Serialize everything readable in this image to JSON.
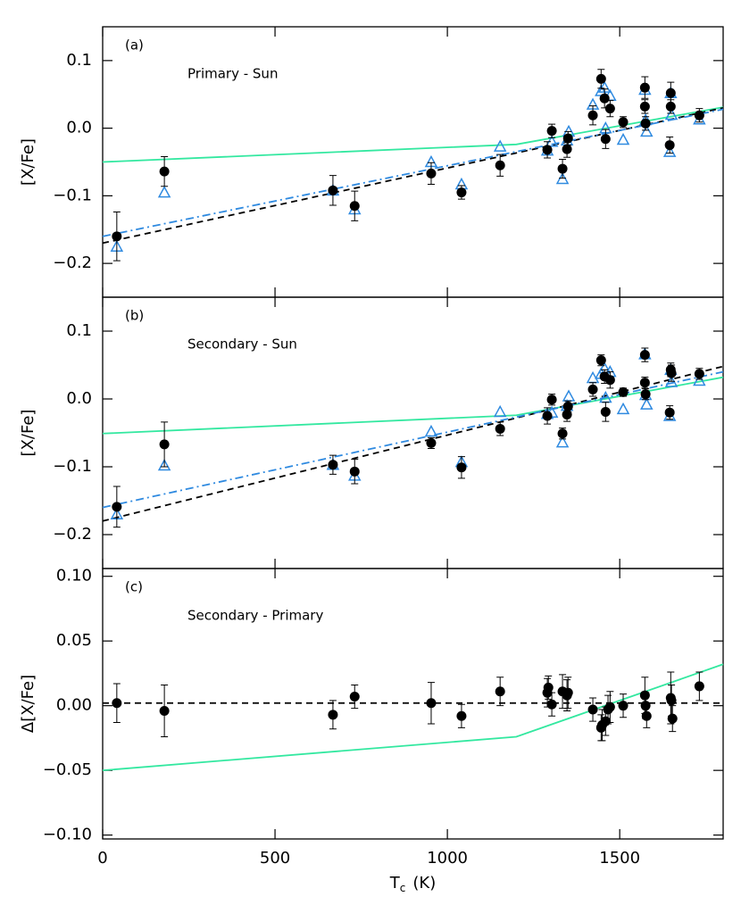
{
  "chart_data": [
    {
      "type": "scatter",
      "y_label": "[X/Fe]",
      "annotations": [
        "(a)",
        "Primary - Sun"
      ],
      "xlim": [
        0,
        1800
      ],
      "xticks": [
        0,
        500,
        1000,
        1500
      ],
      "show_xtick_labels": false,
      "ylim": [
        -0.25,
        0.15
      ],
      "yticks": [
        0.1,
        {
          "value": 0,
          "label": "0.0"
        },
        {
          "value": -0.1,
          "label": "−0.1"
        },
        {
          "value": -0.2,
          "label": "−0.2"
        }
      ],
      "series": [
        {
          "kind": "line",
          "style": "solid",
          "color": "#33e8a0",
          "x": [
            0,
            1200,
            1800
          ],
          "values": [
            -0.05,
            -0.024,
            0.031
          ]
        },
        {
          "kind": "line",
          "style": "dashed",
          "color": "#000000",
          "x": [
            0,
            1800
          ],
          "values": [
            -0.17,
            0.03
          ]
        },
        {
          "kind": "line",
          "style": "dashdot",
          "color": "#2f8ae0",
          "x": [
            0,
            1800
          ],
          "values": [
            -0.16,
            0.028
          ]
        },
        {
          "kind": "points",
          "marker": "triangle-open",
          "color": "#2f8ae0",
          "x": [
            41,
            179,
            668,
            731,
            953,
            1041,
            1153,
            1290,
            1303,
            1334,
            1347,
            1352,
            1422,
            1446,
            1456,
            1459,
            1472,
            1510,
            1573,
            1575,
            1578,
            1648,
            1645,
            1650,
            1731
          ],
          "values": [
            -0.175,
            -0.095,
            -0.092,
            -0.12,
            -0.05,
            -0.083,
            -0.027,
            -0.033,
            -0.02,
            -0.075,
            -0.018,
            -0.005,
            0.035,
            0.055,
            0.06,
            0.0,
            0.048,
            -0.017,
            0.057,
            0.012,
            -0.005,
            0.052,
            -0.035,
            0.02,
            0.013
          ]
        },
        {
          "kind": "points",
          "marker": "circle-filled",
          "color": "#000000",
          "x": [
            41,
            179,
            668,
            731,
            953,
            1041,
            1153,
            1290,
            1303,
            1334,
            1347,
            1350,
            1422,
            1446,
            1456,
            1459,
            1472,
            1510,
            1573,
            1573,
            1575,
            1648,
            1645,
            1648,
            1731
          ],
          "values": [
            -0.16,
            -0.064,
            -0.092,
            -0.115,
            -0.067,
            -0.095,
            -0.055,
            -0.032,
            -0.004,
            -0.06,
            -0.031,
            -0.015,
            0.019,
            0.073,
            0.044,
            -0.016,
            0.029,
            0.009,
            0.06,
            0.032,
            0.007,
            0.052,
            -0.025,
            0.032,
            0.019
          ],
          "errors": [
            0.036,
            0.022,
            0.022,
            0.022,
            0.016,
            0.01,
            0.016,
            0.012,
            0.01,
            0.014,
            0.012,
            0.01,
            0.014,
            0.014,
            0.014,
            0.014,
            0.012,
            0.008,
            0.016,
            0.01,
            0.01,
            0.016,
            0.012,
            0.01,
            0.01
          ]
        }
      ]
    },
    {
      "type": "scatter",
      "y_label": "[X/Fe]",
      "annotations": [
        "(b)",
        "Secondary - Sun"
      ],
      "xlim": [
        0,
        1800
      ],
      "xticks": [
        0,
        500,
        1000,
        1500
      ],
      "show_xtick_labels": false,
      "ylim": [
        -0.25,
        0.15
      ],
      "yticks": [
        0.1,
        {
          "value": 0,
          "label": "0.0"
        },
        {
          "value": -0.1,
          "label": "−0.1"
        },
        {
          "value": -0.2,
          "label": "−0.2"
        }
      ],
      "series": [
        {
          "kind": "line",
          "style": "solid",
          "color": "#33e8a0",
          "x": [
            0,
            1200,
            1800
          ],
          "values": [
            -0.051,
            -0.024,
            0.032
          ]
        },
        {
          "kind": "line",
          "style": "dashed",
          "color": "#000000",
          "x": [
            0,
            1800
          ],
          "values": [
            -0.18,
            0.048
          ]
        },
        {
          "kind": "line",
          "style": "dashdot",
          "color": "#2f8ae0",
          "x": [
            0,
            1800
          ],
          "values": [
            -0.16,
            0.04
          ]
        },
        {
          "kind": "points",
          "marker": "triangle-open",
          "color": "#2f8ae0",
          "x": [
            41,
            179,
            668,
            731,
            953,
            1041,
            1153,
            1290,
            1303,
            1334,
            1347,
            1352,
            1422,
            1446,
            1456,
            1459,
            1472,
            1510,
            1573,
            1575,
            1578,
            1648,
            1645,
            1650,
            1731
          ],
          "values": [
            -0.17,
            -0.098,
            -0.097,
            -0.113,
            -0.048,
            -0.093,
            -0.019,
            -0.022,
            -0.02,
            -0.064,
            -0.01,
            0.004,
            0.031,
            0.037,
            0.045,
            0.002,
            0.04,
            -0.015,
            0.066,
            0.006,
            -0.008,
            0.043,
            -0.025,
            0.025,
            0.027
          ]
        },
        {
          "kind": "points",
          "marker": "circle-filled",
          "color": "#000000",
          "x": [
            41,
            179,
            668,
            731,
            953,
            1041,
            1153,
            1290,
            1303,
            1334,
            1347,
            1350,
            1422,
            1446,
            1456,
            1459,
            1472,
            1510,
            1573,
            1573,
            1575,
            1648,
            1645,
            1650,
            1731
          ],
          "values": [
            -0.159,
            -0.067,
            -0.097,
            -0.107,
            -0.065,
            -0.101,
            -0.044,
            -0.025,
            -0.001,
            -0.051,
            -0.023,
            -0.011,
            0.014,
            0.057,
            0.033,
            -0.019,
            0.028,
            0.01,
            0.065,
            0.024,
            0.007,
            0.043,
            -0.02,
            0.038,
            0.037
          ],
          "errors": [
            0.03,
            0.033,
            0.014,
            0.018,
            0.008,
            0.016,
            0.01,
            0.012,
            0.008,
            0.008,
            0.01,
            0.008,
            0.01,
            0.008,
            0.01,
            0.014,
            0.012,
            0.006,
            0.01,
            0.008,
            0.008,
            0.01,
            0.01,
            0.012,
            0.008
          ]
        }
      ]
    },
    {
      "type": "scatter",
      "y_label": "Δ[X/Fe]",
      "annotations": [
        "(c)",
        "Secondary - Primary"
      ],
      "x_label": {
        "symbol": "T",
        "subscript": "c",
        "unit": "(K)"
      },
      "xlim": [
        0,
        1800
      ],
      "xticks": [
        0,
        500,
        1000,
        1500
      ],
      "show_xtick_labels": true,
      "ylim": [
        -0.103,
        0.106
      ],
      "yticks": [
        {
          "value": 0.1,
          "label": "0.10"
        },
        0.05,
        {
          "value": 0,
          "label": "0.00"
        },
        {
          "value": -0.05,
          "label": "−0.05"
        },
        {
          "value": -0.1,
          "label": "−0.10"
        }
      ],
      "series": [
        {
          "kind": "line",
          "style": "dashed",
          "color": "#000000",
          "x": [
            0,
            1800
          ],
          "values": [
            0.002,
            0.002
          ]
        },
        {
          "kind": "line",
          "style": "solid",
          "color": "#33e8a0",
          "x": [
            0,
            1200,
            1800
          ],
          "values": [
            -0.05,
            -0.024,
            0.032
          ]
        },
        {
          "kind": "points",
          "marker": "circle-filled",
          "color": "#000000",
          "x": [
            41,
            179,
            668,
            731,
            953,
            1041,
            1153,
            1290,
            1293,
            1303,
            1334,
            1347,
            1350,
            1422,
            1446,
            1449,
            1459,
            1466,
            1472,
            1510,
            1573,
            1575,
            1578,
            1648,
            1650,
            1653,
            1731
          ],
          "values": [
            0.002,
            -0.004,
            -0.007,
            0.007,
            0.002,
            -0.008,
            0.011,
            0.01,
            0.014,
            0.001,
            0.011,
            0.008,
            0.01,
            -0.003,
            -0.017,
            -0.015,
            -0.012,
            -0.003,
            -0.001,
            0.0,
            0.008,
            0.0,
            -0.008,
            0.006,
            0.004,
            -0.01,
            0.015
          ],
          "errors": [
            0.015,
            0.02,
            0.011,
            0.009,
            0.016,
            0.009,
            0.011,
            0.011,
            0.009,
            0.009,
            0.013,
            0.012,
            0.012,
            0.009,
            0.01,
            0.012,
            0.011,
            0.011,
            0.012,
            0.009,
            0.014,
            0.01,
            0.009,
            0.02,
            0.012,
            0.01,
            0.011
          ]
        }
      ]
    }
  ]
}
